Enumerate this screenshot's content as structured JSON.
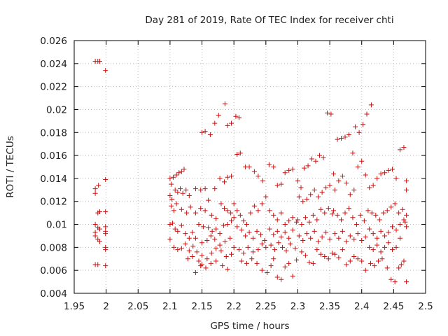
{
  "chart_data": {
    "type": "scatter",
    "title": "Day 281 of 2019, Rate Of TEC Index for receiver chti",
    "xlabel": "GPS time / hours",
    "ylabel": "ROTI / TECUs",
    "xlim": [
      1.95,
      2.5
    ],
    "ylim": [
      0.004,
      0.026
    ],
    "xticks": [
      "1.95",
      "2",
      "2.05",
      "2.1",
      "2.15",
      "2.2",
      "2.25",
      "2.3",
      "2.35",
      "2.4",
      "2.45",
      "2.5"
    ],
    "yticks": [
      "0.004",
      "0.006",
      "0.008",
      "0.01",
      "0.012",
      "0.014",
      "0.016",
      "0.018",
      "0.02",
      "0.022",
      "0.024",
      "0.026"
    ],
    "grid": true,
    "marker": "plus",
    "color": "#cc1111",
    "points": [
      [
        1.983,
        0.0242
      ],
      [
        1.987,
        0.0242
      ],
      [
        1.99,
        0.0242
      ],
      [
        1.999,
        0.0234
      ],
      [
        1.983,
        0.0131
      ],
      [
        1.983,
        0.0127
      ],
      [
        1.988,
        0.0134
      ],
      [
        1.999,
        0.0139
      ],
      [
        1.987,
        0.011
      ],
      [
        1.99,
        0.0111
      ],
      [
        1.999,
        0.0111
      ],
      [
        1.983,
        0.01
      ],
      [
        1.987,
        0.0097
      ],
      [
        1.99,
        0.0096
      ],
      [
        1.999,
        0.0098
      ],
      [
        1.999,
        0.0094
      ],
      [
        1.983,
        0.0093
      ],
      [
        1.983,
        0.009
      ],
      [
        1.987,
        0.0087
      ],
      [
        1.99,
        0.0085
      ],
      [
        1.999,
        0.0092
      ],
      [
        1.999,
        0.008
      ],
      [
        1.999,
        0.0078
      ],
      [
        1.983,
        0.0065
      ],
      [
        1.987,
        0.0065
      ],
      [
        1.999,
        0.0064
      ],
      [
        2.1,
        0.014
      ],
      [
        2.102,
        0.0135
      ],
      [
        2.105,
        0.0141
      ],
      [
        2.11,
        0.0143
      ],
      [
        2.114,
        0.0145
      ],
      [
        2.118,
        0.0146
      ],
      [
        2.122,
        0.0148
      ],
      [
        2.1,
        0.0125
      ],
      [
        2.103,
        0.0122
      ],
      [
        2.108,
        0.013
      ],
      [
        2.112,
        0.0128
      ],
      [
        2.116,
        0.0131
      ],
      [
        2.12,
        0.0127
      ],
      [
        2.125,
        0.013
      ],
      [
        2.13,
        0.0125
      ],
      [
        2.102,
        0.0116
      ],
      [
        2.106,
        0.0112
      ],
      [
        2.11,
        0.0118
      ],
      [
        2.118,
        0.0113
      ],
      [
        2.126,
        0.011
      ],
      [
        2.132,
        0.0115
      ],
      [
        2.1,
        0.01
      ],
      [
        2.104,
        0.0101
      ],
      [
        2.108,
        0.0096
      ],
      [
        2.112,
        0.0094
      ],
      [
        2.118,
        0.0099
      ],
      [
        2.124,
        0.0092
      ],
      [
        2.13,
        0.0088
      ],
      [
        2.135,
        0.0093
      ],
      [
        2.1,
        0.0087
      ],
      [
        2.106,
        0.008
      ],
      [
        2.112,
        0.0078
      ],
      [
        2.118,
        0.0079
      ],
      [
        2.124,
        0.0083
      ],
      [
        2.13,
        0.0077
      ],
      [
        2.136,
        0.0081
      ],
      [
        2.128,
        0.007
      ],
      [
        2.135,
        0.0072
      ],
      [
        2.14,
        0.0058
      ],
      [
        2.145,
        0.0068
      ],
      [
        2.15,
        0.0065
      ],
      [
        2.15,
        0.018
      ],
      [
        2.155,
        0.0181
      ],
      [
        2.163,
        0.0178
      ],
      [
        2.17,
        0.0188
      ],
      [
        2.176,
        0.0195
      ],
      [
        2.186,
        0.0205
      ],
      [
        2.19,
        0.0186
      ],
      [
        2.196,
        0.0188
      ],
      [
        2.203,
        0.0194
      ],
      [
        2.208,
        0.0193
      ],
      [
        2.14,
        0.0131
      ],
      [
        2.148,
        0.013
      ],
      [
        2.155,
        0.0131
      ],
      [
        2.16,
        0.0121
      ],
      [
        2.17,
        0.0131
      ],
      [
        2.178,
        0.014
      ],
      [
        2.185,
        0.0137
      ],
      [
        2.19,
        0.0141
      ],
      [
        2.196,
        0.0142
      ],
      [
        2.205,
        0.0161
      ],
      [
        2.21,
        0.0162
      ],
      [
        2.218,
        0.015
      ],
      [
        2.224,
        0.015
      ],
      [
        2.232,
        0.0146
      ],
      [
        2.238,
        0.0142
      ],
      [
        2.245,
        0.0138
      ],
      [
        2.14,
        0.011
      ],
      [
        2.148,
        0.0114
      ],
      [
        2.155,
        0.0112
      ],
      [
        2.165,
        0.0108
      ],
      [
        2.172,
        0.0105
      ],
      [
        2.18,
        0.0118
      ],
      [
        2.185,
        0.0114
      ],
      [
        2.19,
        0.0112
      ],
      [
        2.195,
        0.011
      ],
      [
        2.145,
        0.01
      ],
      [
        2.152,
        0.0098
      ],
      [
        2.16,
        0.0097
      ],
      [
        2.166,
        0.0094
      ],
      [
        2.172,
        0.0096
      ],
      [
        2.178,
        0.0092
      ],
      [
        2.184,
        0.0099
      ],
      [
        2.19,
        0.01
      ],
      [
        2.196,
        0.0103
      ],
      [
        2.2,
        0.0106
      ],
      [
        2.14,
        0.0088
      ],
      [
        2.15,
        0.0084
      ],
      [
        2.158,
        0.0086
      ],
      [
        2.164,
        0.009
      ],
      [
        2.17,
        0.0087
      ],
      [
        2.178,
        0.0082
      ],
      [
        2.186,
        0.0085
      ],
      [
        2.194,
        0.0088
      ],
      [
        2.142,
        0.0076
      ],
      [
        2.15,
        0.0073
      ],
      [
        2.158,
        0.007
      ],
      [
        2.165,
        0.0075
      ],
      [
        2.172,
        0.0079
      ],
      [
        2.18,
        0.0077
      ],
      [
        2.188,
        0.0072
      ],
      [
        2.196,
        0.0074
      ],
      [
        2.148,
        0.0064
      ],
      [
        2.156,
        0.0062
      ],
      [
        2.164,
        0.0066
      ],
      [
        2.172,
        0.0068
      ],
      [
        2.182,
        0.0064
      ],
      [
        2.19,
        0.0061
      ],
      [
        2.2,
        0.0118
      ],
      [
        2.205,
        0.0112
      ],
      [
        2.21,
        0.0108
      ],
      [
        2.215,
        0.0103
      ],
      [
        2.22,
        0.01
      ],
      [
        2.226,
        0.011
      ],
      [
        2.232,
        0.0116
      ],
      [
        2.238,
        0.0112
      ],
      [
        2.244,
        0.0118
      ],
      [
        2.25,
        0.0124
      ],
      [
        2.205,
        0.0098
      ],
      [
        2.212,
        0.0095
      ],
      [
        2.218,
        0.009
      ],
      [
        2.224,
        0.0093
      ],
      [
        2.23,
        0.0088
      ],
      [
        2.236,
        0.0094
      ],
      [
        2.242,
        0.0091
      ],
      [
        2.248,
        0.0086
      ],
      [
        2.2,
        0.008
      ],
      [
        2.208,
        0.0078
      ],
      [
        2.215,
        0.0075
      ],
      [
        2.222,
        0.008
      ],
      [
        2.23,
        0.0076
      ],
      [
        2.238,
        0.0078
      ],
      [
        2.244,
        0.0083
      ],
      [
        2.25,
        0.008
      ],
      [
        2.212,
        0.0068
      ],
      [
        2.22,
        0.0066
      ],
      [
        2.228,
        0.007
      ],
      [
        2.236,
        0.0066
      ],
      [
        2.244,
        0.006
      ],
      [
        2.252,
        0.0058
      ],
      [
        2.258,
        0.0064
      ],
      [
        2.255,
        0.0152
      ],
      [
        2.262,
        0.015
      ],
      [
        2.268,
        0.0134
      ],
      [
        2.274,
        0.0135
      ],
      [
        2.28,
        0.0145
      ],
      [
        2.286,
        0.0147
      ],
      [
        2.292,
        0.0148
      ],
      [
        2.256,
        0.0112
      ],
      [
        2.262,
        0.0108
      ],
      [
        2.268,
        0.0104
      ],
      [
        2.274,
        0.011
      ],
      [
        2.28,
        0.01
      ],
      [
        2.286,
        0.0103
      ],
      [
        2.292,
        0.0106
      ],
      [
        2.298,
        0.0102
      ],
      [
        2.256,
        0.0096
      ],
      [
        2.262,
        0.0091
      ],
      [
        2.268,
        0.0094
      ],
      [
        2.274,
        0.0089
      ],
      [
        2.28,
        0.0093
      ],
      [
        2.286,
        0.0088
      ],
      [
        2.292,
        0.0095
      ],
      [
        2.258,
        0.0082
      ],
      [
        2.264,
        0.0078
      ],
      [
        2.27,
        0.0084
      ],
      [
        2.276,
        0.008
      ],
      [
        2.282,
        0.0077
      ],
      [
        2.288,
        0.0083
      ],
      [
        2.296,
        0.0079
      ],
      [
        2.262,
        0.007
      ],
      [
        2.268,
        0.0054
      ],
      [
        2.274,
        0.0052
      ],
      [
        2.28,
        0.0063
      ],
      [
        2.286,
        0.0066
      ],
      [
        2.292,
        0.0055
      ],
      [
        2.298,
        0.0069
      ],
      [
        2.3,
        0.0138
      ],
      [
        2.305,
        0.0132
      ],
      [
        2.31,
        0.0149
      ],
      [
        2.316,
        0.0151
      ],
      [
        2.322,
        0.0157
      ],
      [
        2.328,
        0.0155
      ],
      [
        2.334,
        0.016
      ],
      [
        2.34,
        0.0158
      ],
      [
        2.346,
        0.0197
      ],
      [
        2.352,
        0.0196
      ],
      [
        2.302,
        0.0124
      ],
      [
        2.308,
        0.012
      ],
      [
        2.314,
        0.0122
      ],
      [
        2.32,
        0.0126
      ],
      [
        2.326,
        0.013
      ],
      [
        2.332,
        0.0124
      ],
      [
        2.338,
        0.0128
      ],
      [
        2.344,
        0.0132
      ],
      [
        2.35,
        0.0134
      ],
      [
        2.3,
        0.0104
      ],
      [
        2.306,
        0.01
      ],
      [
        2.312,
        0.0106
      ],
      [
        2.318,
        0.0102
      ],
      [
        2.324,
        0.0108
      ],
      [
        2.33,
        0.0104
      ],
      [
        2.336,
        0.0113
      ],
      [
        2.342,
        0.011
      ],
      [
        2.348,
        0.0114
      ],
      [
        2.354,
        0.0109
      ],
      [
        2.302,
        0.009
      ],
      [
        2.308,
        0.0086
      ],
      [
        2.314,
        0.0092
      ],
      [
        2.32,
        0.0088
      ],
      [
        2.326,
        0.0094
      ],
      [
        2.332,
        0.0085
      ],
      [
        2.338,
        0.0089
      ],
      [
        2.344,
        0.0093
      ],
      [
        2.35,
        0.0087
      ],
      [
        2.306,
        0.0076
      ],
      [
        2.312,
        0.0073
      ],
      [
        2.318,
        0.0067
      ],
      [
        2.324,
        0.0066
      ],
      [
        2.33,
        0.0078
      ],
      [
        2.336,
        0.0074
      ],
      [
        2.342,
        0.0072
      ],
      [
        2.348,
        0.007
      ],
      [
        2.354,
        0.0075
      ],
      [
        2.356,
        0.0144
      ],
      [
        2.362,
        0.0174
      ],
      [
        2.368,
        0.0175
      ],
      [
        2.374,
        0.0176
      ],
      [
        2.38,
        0.0178
      ],
      [
        2.386,
        0.0162
      ],
      [
        2.39,
        0.0185
      ],
      [
        2.396,
        0.018
      ],
      [
        2.402,
        0.0187
      ],
      [
        2.408,
        0.0196
      ],
      [
        2.415,
        0.0204
      ],
      [
        2.358,
        0.013
      ],
      [
        2.364,
        0.0138
      ],
      [
        2.37,
        0.0142
      ],
      [
        2.376,
        0.0136
      ],
      [
        2.382,
        0.0126
      ],
      [
        2.388,
        0.013
      ],
      [
        2.394,
        0.015
      ],
      [
        2.4,
        0.0155
      ],
      [
        2.406,
        0.0143
      ],
      [
        2.356,
        0.0112
      ],
      [
        2.362,
        0.0108
      ],
      [
        2.368,
        0.0104
      ],
      [
        2.374,
        0.011
      ],
      [
        2.38,
        0.0114
      ],
      [
        2.386,
        0.0106
      ],
      [
        2.392,
        0.01
      ],
      [
        2.398,
        0.0108
      ],
      [
        2.404,
        0.0103
      ],
      [
        2.358,
        0.0092
      ],
      [
        2.364,
        0.0088
      ],
      [
        2.37,
        0.0094
      ],
      [
        2.376,
        0.0085
      ],
      [
        2.382,
        0.009
      ],
      [
        2.388,
        0.0087
      ],
      [
        2.394,
        0.0092
      ],
      [
        2.4,
        0.0086
      ],
      [
        2.406,
        0.0089
      ],
      [
        2.358,
        0.0074
      ],
      [
        2.364,
        0.0071
      ],
      [
        2.37,
        0.0078
      ],
      [
        2.376,
        0.0065
      ],
      [
        2.382,
        0.0068
      ],
      [
        2.388,
        0.0072
      ],
      [
        2.394,
        0.007
      ],
      [
        2.4,
        0.0068
      ],
      [
        2.406,
        0.006
      ],
      [
        2.412,
        0.0132
      ],
      [
        2.418,
        0.0134
      ],
      [
        2.424,
        0.014
      ],
      [
        2.43,
        0.0144
      ],
      [
        2.436,
        0.0145
      ],
      [
        2.442,
        0.0147
      ],
      [
        2.448,
        0.0148
      ],
      [
        2.454,
        0.014
      ],
      [
        2.46,
        0.0165
      ],
      [
        2.466,
        0.0167
      ],
      [
        2.41,
        0.0112
      ],
      [
        2.416,
        0.011
      ],
      [
        2.422,
        0.0108
      ],
      [
        2.428,
        0.0104
      ],
      [
        2.434,
        0.011
      ],
      [
        2.44,
        0.0112
      ],
      [
        2.446,
        0.0115
      ],
      [
        2.452,
        0.0118
      ],
      [
        2.458,
        0.011
      ],
      [
        2.464,
        0.0113
      ],
      [
        2.468,
        0.0102
      ],
      [
        2.412,
        0.0096
      ],
      [
        2.418,
        0.0092
      ],
      [
        2.424,
        0.0088
      ],
      [
        2.43,
        0.0094
      ],
      [
        2.436,
        0.009
      ],
      [
        2.442,
        0.0093
      ],
      [
        2.448,
        0.0098
      ],
      [
        2.454,
        0.0095
      ],
      [
        2.46,
        0.01
      ],
      [
        2.466,
        0.0104
      ],
      [
        2.412,
        0.008
      ],
      [
        2.418,
        0.0078
      ],
      [
        2.424,
        0.0082
      ],
      [
        2.43,
        0.0076
      ],
      [
        2.436,
        0.008
      ],
      [
        2.442,
        0.0084
      ],
      [
        2.448,
        0.0078
      ],
      [
        2.454,
        0.008
      ],
      [
        2.46,
        0.0088
      ],
      [
        2.414,
        0.0066
      ],
      [
        2.42,
        0.0064
      ],
      [
        2.426,
        0.0068
      ],
      [
        2.432,
        0.007
      ],
      [
        2.44,
        0.0062
      ],
      [
        2.446,
        0.0052
      ],
      [
        2.452,
        0.005
      ],
      [
        2.458,
        0.0062
      ],
      [
        2.462,
        0.0065
      ],
      [
        2.466,
        0.0068
      ],
      [
        2.47,
        0.005
      ],
      [
        2.47,
        0.013
      ],
      [
        2.47,
        0.0138
      ],
      [
        2.47,
        0.0108
      ],
      [
        2.47,
        0.0098
      ]
    ]
  }
}
